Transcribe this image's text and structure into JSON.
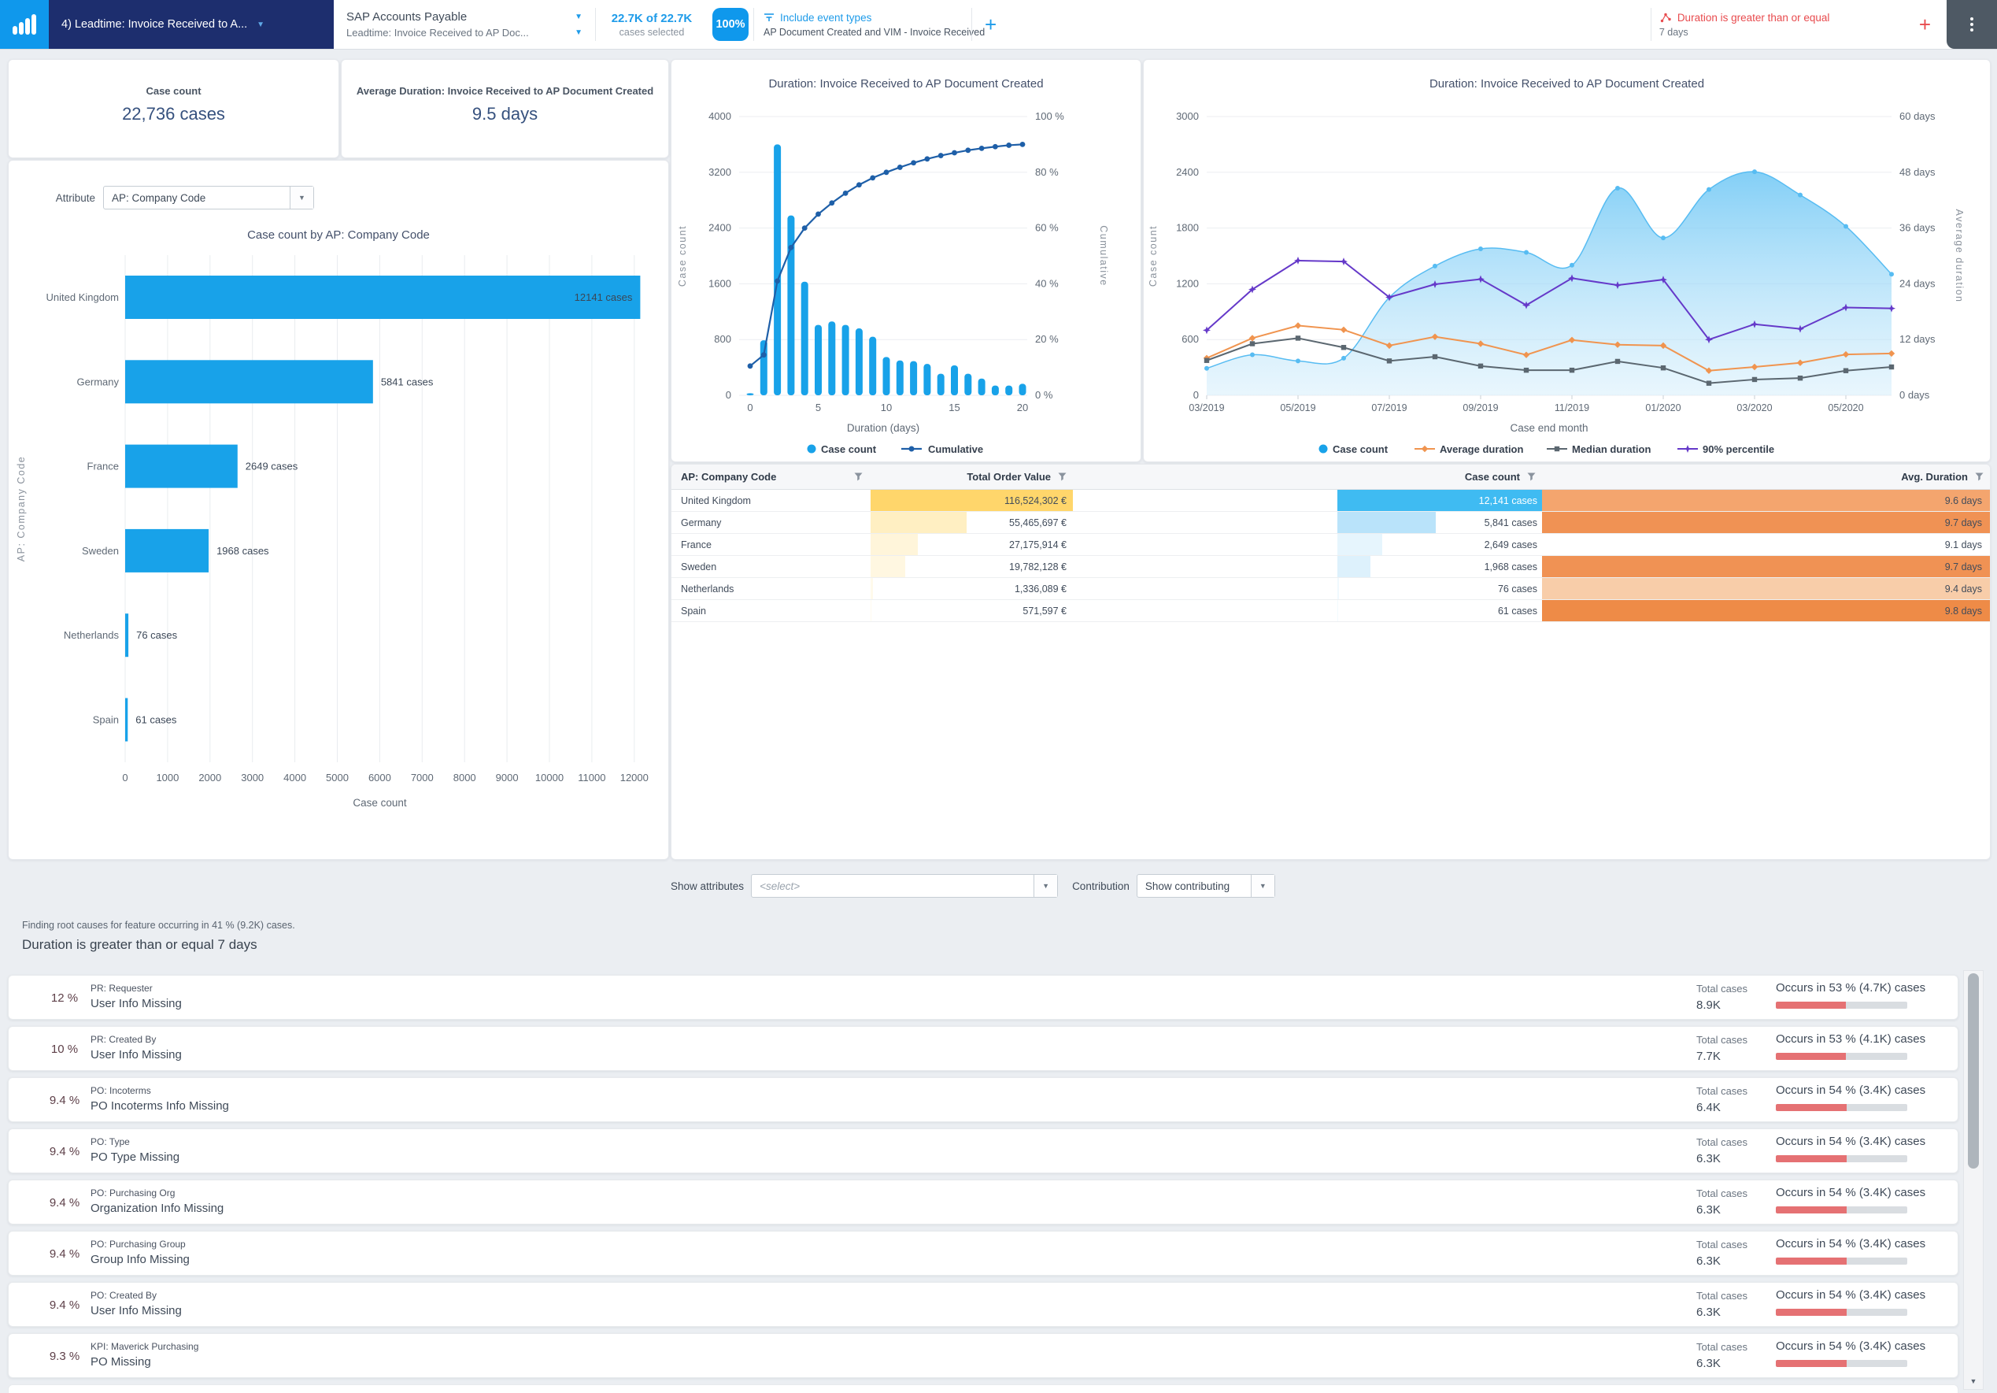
{
  "colors": {
    "primary_blue": "#18A2E9",
    "dark_blue": "#1E5FA8",
    "area_edge": "#57BCF2",
    "orange": "#F0944F",
    "gray_line": "#5B6770",
    "purple": "#6539C9",
    "red": "#E84B4E",
    "coral": "#E57173",
    "logo_blue": "#0F98EC",
    "navy": "#1D2E6E"
  },
  "topbar": {
    "workspace_tab": "4) Leadtime: Invoice Received to A...",
    "app_title": "SAP Accounts Payable",
    "app_subtitle": "Leadtime: Invoice Received to AP Doc...",
    "selection_count": "22.7K of 22.7K",
    "selection_label": "cases selected",
    "selection_pct": "100%",
    "event_filter_title": "Include event types",
    "event_filter_detail": "AP Document Created and VIM - Invoice Received",
    "add_filter_label": "+",
    "active_filter_title": "Duration is greater than or equal",
    "active_filter_detail": "7 days",
    "add_filter2_label": "+"
  },
  "kpi": {
    "case_count_label": "Case count",
    "case_count_value": "22,736 cases",
    "avg_duration_label": "Average Duration: Invoice Received to AP Document Created",
    "avg_duration_value": "9.5 days"
  },
  "attribute_selector": {
    "label": "Attribute",
    "value": "AP: Company Code"
  },
  "chart_data": [
    {
      "type": "bar",
      "orientation": "horizontal",
      "title": "Case count by AP: Company Code",
      "categories": [
        "United Kingdom",
        "Germany",
        "France",
        "Sweden",
        "Netherlands",
        "Spain"
      ],
      "values": [
        12141,
        5841,
        2649,
        1968,
        76,
        61
      ],
      "value_labels": [
        "12141 cases",
        "5841 cases",
        "2649 cases",
        "1968 cases",
        "76 cases",
        "61 cases"
      ],
      "xlabel": "Case count",
      "ylabel": "AP: Company Code",
      "xlim": [
        0,
        12000
      ],
      "xticks": [
        0,
        1000,
        2000,
        3000,
        4000,
        5000,
        6000,
        7000,
        8000,
        9000,
        10000,
        11000,
        12000
      ]
    },
    {
      "type": "pareto",
      "title": "Duration: Invoice Received to AP Document Created",
      "xlabel": "Duration (days)",
      "ylabel_left": "Case count",
      "ylabel_right": "Cumulative",
      "x": [
        0,
        1,
        2,
        3,
        4,
        5,
        6,
        7,
        8,
        9,
        10,
        11,
        12,
        13,
        14,
        15,
        16,
        17,
        18,
        19,
        20
      ],
      "bar_values": [
        30,
        790,
        3600,
        2580,
        1630,
        1010,
        1060,
        1010,
        960,
        840,
        550,
        500,
        490,
        450,
        310,
        430,
        310,
        240,
        140,
        140,
        165
      ],
      "cumulative_pct": [
        10.5,
        14.5,
        41,
        53,
        60,
        65,
        69,
        72.5,
        75.5,
        78,
        80,
        81.8,
        83.4,
        84.8,
        86,
        87,
        87.9,
        88.6,
        89.2,
        89.7,
        90
      ],
      "ylim_left": [
        0,
        4000
      ],
      "yticks_left": [
        0,
        800,
        1600,
        2400,
        3200,
        4000
      ],
      "ylim_right": [
        0,
        100
      ],
      "yticks_right": [
        "0 %",
        "20 %",
        "40 %",
        "60 %",
        "80 %",
        "100 %"
      ],
      "xticks": [
        0,
        5,
        10,
        15,
        20
      ],
      "legend": [
        "Case count",
        "Cumulative"
      ]
    },
    {
      "type": "area_line",
      "title": "Duration: Invoice Received to AP Document Created",
      "xlabel": "Case end month",
      "ylabel_left": "Case count",
      "ylabel_right": "Average duration",
      "months": [
        "03/2019",
        "04/2019",
        "05/2019",
        "06/2019",
        "07/2019",
        "08/2019",
        "09/2019",
        "10/2019",
        "11/2019",
        "12/2019",
        "01/2020",
        "02/2020",
        "03/2020",
        "04/2020",
        "05/2020",
        "06/2020"
      ],
      "xticks": [
        "03/2019",
        "05/2019",
        "07/2019",
        "09/2019",
        "11/2019",
        "01/2020",
        "03/2020",
        "05/2020"
      ],
      "ylim_left": [
        0,
        3000
      ],
      "yticks_left": [
        0,
        600,
        1200,
        1800,
        2400,
        3000
      ],
      "ylim_right": [
        0,
        60
      ],
      "yticks_right": [
        "0 days",
        "12 days",
        "24 days",
        "36 days",
        "48 days",
        "60 days"
      ],
      "series": [
        {
          "name": "Case count",
          "type": "area",
          "axis": "left",
          "values": [
            290,
            436,
            370,
            399,
            1053,
            1391,
            1576,
            1538,
            1400,
            2229,
            1694,
            2215,
            2406,
            2156,
            1818,
            1303
          ]
        },
        {
          "name": "Average duration",
          "type": "line",
          "axis": "right",
          "marker": "diamond",
          "values": [
            8,
            12.3,
            15,
            14.1,
            10.7,
            12.6,
            11.1,
            8.7,
            11.9,
            10.9,
            10.7,
            5.3,
            6.1,
            7,
            8.8,
            9
          ]
        },
        {
          "name": "Median duration",
          "type": "line",
          "axis": "right",
          "marker": "square",
          "values": [
            7.5,
            11.1,
            12.3,
            10.3,
            7.4,
            8.3,
            6.3,
            5.4,
            5.4,
            7.3,
            5.9,
            2.6,
            3.4,
            3.7,
            5.3,
            6.1
          ]
        },
        {
          "name": "90% percentile",
          "type": "line",
          "axis": "right",
          "marker": "star",
          "values": [
            14,
            22.8,
            29,
            28.8,
            21.1,
            23.9,
            25,
            19.4,
            25.2,
            23.7,
            24.9,
            12,
            15.3,
            14.3,
            18.9,
            18.7
          ]
        }
      ]
    }
  ],
  "table": {
    "columns": [
      {
        "label": "AP: Company Code"
      },
      {
        "label": "Total Order Value"
      },
      {
        "label": "Case count"
      },
      {
        "label": "Avg. Duration"
      }
    ],
    "rows": [
      {
        "company": "United Kingdom",
        "order_value": "116,524,302 €",
        "order_pct": 100,
        "order_color": "#FFD66B",
        "cases": "12,141 cases",
        "case_pct": 100,
        "case_color": "#3FBBF2",
        "case_text": "#FFFFFF",
        "avg": "9.6 days",
        "avg_color": "#F4A56E"
      },
      {
        "company": "Germany",
        "order_value": "55,465,697 €",
        "order_pct": 47.6,
        "order_color": "#FFEFC2",
        "cases": "5,841 cases",
        "case_pct": 48.1,
        "case_color": "#B9E3FA",
        "case_text": "#414C5B",
        "avg": "9.7 days",
        "avg_color": "#F09254"
      },
      {
        "company": "France",
        "order_value": "27,175,914 €",
        "order_pct": 23.3,
        "order_color": "#FFF5DA",
        "cases": "2,649 cases",
        "case_pct": 21.8,
        "case_color": "#E6F5FD",
        "case_text": "#414C5B",
        "avg": "9.1 days",
        "avg_color": ""
      },
      {
        "company": "Sweden",
        "order_value": "19,782,128 €",
        "order_pct": 17,
        "order_color": "#FFF7E1",
        "cases": "1,968 cases",
        "case_pct": 16.2,
        "case_color": "#DDF1FC",
        "case_text": "#414C5B",
        "avg": "9.7 days",
        "avg_color": "#F09254"
      },
      {
        "company": "Netherlands",
        "order_value": "1,336,089 €",
        "order_pct": 1.1,
        "order_color": "#FFFAEB",
        "cases": "76 cases",
        "case_pct": 0.6,
        "case_color": "#F0F9FE",
        "case_text": "#414C5B",
        "avg": "9.4 days",
        "avg_color": "#F8CDA9"
      },
      {
        "company": "Spain",
        "order_value": "571,597 €",
        "order_pct": 0.5,
        "order_color": "#FFFBEF",
        "cases": "61 cases",
        "case_pct": 0.5,
        "case_color": "#F2FAFE",
        "case_text": "#414C5B",
        "avg": "9.8 days",
        "avg_color": "#EE8B47"
      }
    ]
  },
  "bottom": {
    "show_attributes_label": "Show attributes",
    "show_attributes_placeholder": "<select>",
    "contribution_label": "Contribution",
    "contribution_value": "Show contributing",
    "finding_text": "Finding root causes for feature occurring in 41 % (9.2K) cases.",
    "feature_title": "Duration is greater than or equal 7 days",
    "total_label": "Total cases",
    "rows": [
      {
        "pct": "12 %",
        "attr": "PR: Requester",
        "feature": "User Info Missing",
        "total": "8.9K",
        "occurs": "Occurs in 53 % (4.7K) cases",
        "occurs_pct": 53
      },
      {
        "pct": "10 %",
        "attr": "PR: Created By",
        "feature": "User Info Missing",
        "total": "7.7K",
        "occurs": "Occurs in 53 % (4.1K) cases",
        "occurs_pct": 53
      },
      {
        "pct": "9.4 %",
        "attr": "PO: Incoterms",
        "feature": "PO Incoterms Info Missing",
        "total": "6.4K",
        "occurs": "Occurs in 54 % (3.4K) cases",
        "occurs_pct": 54
      },
      {
        "pct": "9.4 %",
        "attr": "PO: Type",
        "feature": "PO Type Missing",
        "total": "6.3K",
        "occurs": "Occurs in 54 % (3.4K) cases",
        "occurs_pct": 54
      },
      {
        "pct": "9.4 %",
        "attr": "PO: Purchasing Org",
        "feature": "Organization Info Missing",
        "total": "6.3K",
        "occurs": "Occurs in 54 % (3.4K) cases",
        "occurs_pct": 54
      },
      {
        "pct": "9.4 %",
        "attr": "PO: Purchasing Group",
        "feature": "Group Info Missing",
        "total": "6.3K",
        "occurs": "Occurs in 54 % (3.4K) cases",
        "occurs_pct": 54
      },
      {
        "pct": "9.4 %",
        "attr": "PO: Created By",
        "feature": "User Info Missing",
        "total": "6.3K",
        "occurs": "Occurs in 54 % (3.4K) cases",
        "occurs_pct": 54
      },
      {
        "pct": "9.3 %",
        "attr": "KPI: Maverick Purchasing",
        "feature": "PO Missing",
        "total": "6.3K",
        "occurs": "Occurs in 54 % (3.4K) cases",
        "occurs_pct": 54
      }
    ]
  }
}
